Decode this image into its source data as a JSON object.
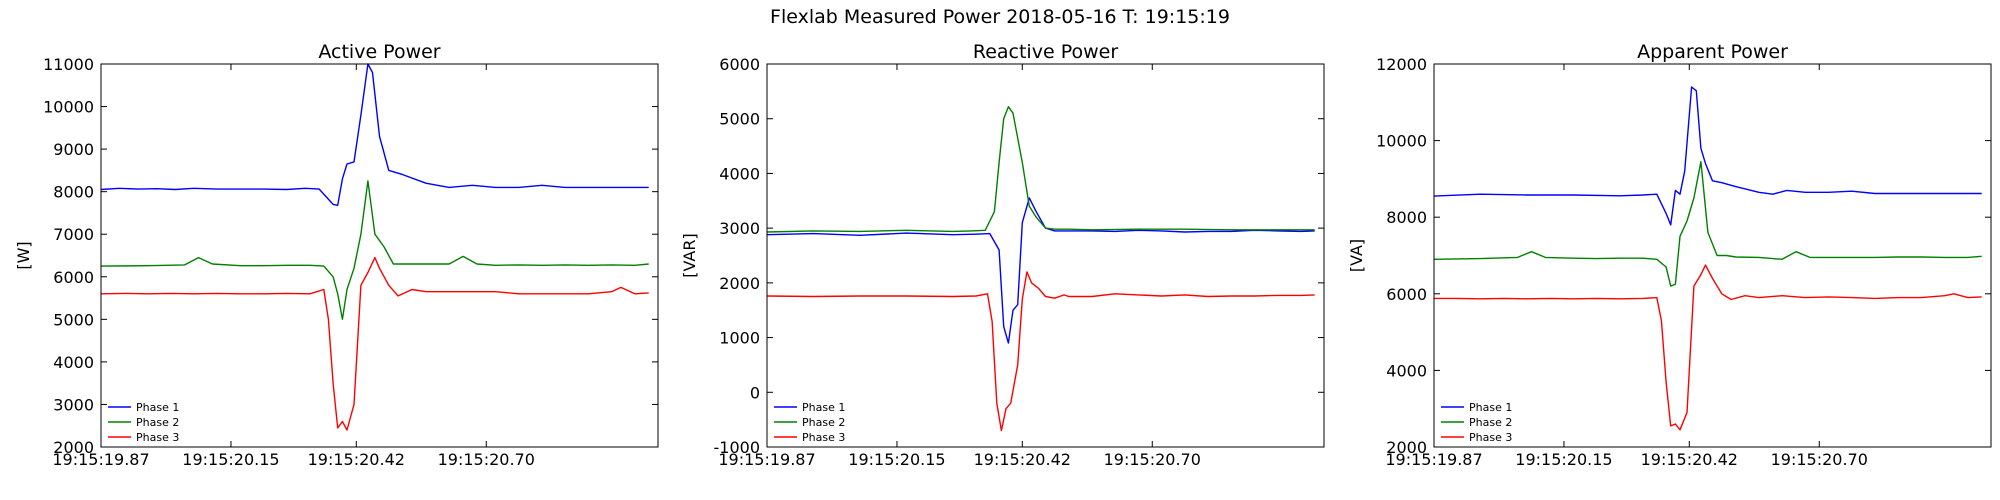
{
  "figure_title": "Flexlab Measured Power 2018-05-16 T: 19:15:19",
  "chart_data": [
    {
      "type": "line",
      "title": "Active Power",
      "ylabel": "[W]",
      "xlabel": "",
      "ylim": [
        2000,
        11000
      ],
      "yticks": [
        2000,
        3000,
        4000,
        5000,
        6000,
        7000,
        8000,
        9000,
        10000,
        11000
      ],
      "xticks": [
        0,
        0.28,
        0.55,
        0.83
      ],
      "xtick_labels": [
        "19:15:19.87",
        "19:15:20.15",
        "19:15:20.42",
        "19:15:20.70"
      ],
      "xlim": [
        0,
        1.2
      ],
      "grid": false,
      "legend": "bottom-left",
      "series": [
        {
          "name": "Phase 1",
          "color": "#0000ff",
          "x": [
            0,
            0.04,
            0.08,
            0.12,
            0.16,
            0.2,
            0.25,
            0.3,
            0.35,
            0.4,
            0.44,
            0.47,
            0.5,
            0.51,
            0.52,
            0.53,
            0.545,
            0.56,
            0.575,
            0.585,
            0.6,
            0.62,
            0.65,
            0.7,
            0.75,
            0.8,
            0.85,
            0.9,
            0.95,
            1.0,
            1.05,
            1.1,
            1.15,
            1.18
          ],
          "y": [
            8050,
            8080,
            8060,
            8070,
            8050,
            8080,
            8060,
            8060,
            8060,
            8050,
            8080,
            8060,
            7700,
            7680,
            8300,
            8650,
            8700,
            9800,
            11000,
            10800,
            9300,
            8500,
            8400,
            8200,
            8100,
            8150,
            8100,
            8100,
            8150,
            8100,
            8100,
            8100,
            8100,
            8100
          ]
        },
        {
          "name": "Phase 2",
          "color": "#008000",
          "x": [
            0,
            0.1,
            0.18,
            0.21,
            0.24,
            0.3,
            0.35,
            0.4,
            0.45,
            0.48,
            0.5,
            0.51,
            0.52,
            0.53,
            0.545,
            0.56,
            0.575,
            0.59,
            0.61,
            0.63,
            0.65,
            0.7,
            0.75,
            0.78,
            0.81,
            0.85,
            0.9,
            0.95,
            1.0,
            1.05,
            1.1,
            1.15,
            1.18
          ],
          "y": [
            6250,
            6260,
            6280,
            6450,
            6300,
            6260,
            6260,
            6270,
            6270,
            6250,
            6000,
            5600,
            5000,
            5700,
            6200,
            7000,
            8250,
            7000,
            6700,
            6300,
            6300,
            6300,
            6300,
            6480,
            6300,
            6270,
            6280,
            6270,
            6280,
            6270,
            6280,
            6270,
            6300
          ]
        },
        {
          "name": "Phase 3",
          "color": "#ff0000",
          "x": [
            0,
            0.05,
            0.1,
            0.15,
            0.2,
            0.25,
            0.3,
            0.35,
            0.4,
            0.45,
            0.48,
            0.49,
            0.5,
            0.51,
            0.52,
            0.53,
            0.545,
            0.56,
            0.575,
            0.59,
            0.6,
            0.62,
            0.64,
            0.67,
            0.7,
            0.75,
            0.8,
            0.85,
            0.9,
            0.95,
            1.0,
            1.05,
            1.1,
            1.12,
            1.15,
            1.18
          ],
          "y": [
            5600,
            5610,
            5600,
            5610,
            5600,
            5610,
            5600,
            5600,
            5610,
            5600,
            5700,
            5000,
            3500,
            2450,
            2600,
            2400,
            3000,
            5800,
            6100,
            6450,
            6200,
            5800,
            5550,
            5700,
            5650,
            5650,
            5650,
            5650,
            5600,
            5600,
            5600,
            5600,
            5650,
            5750,
            5600,
            5620
          ]
        }
      ]
    },
    {
      "type": "line",
      "title": "Reactive Power",
      "ylabel": "[VAR]",
      "xlabel": "",
      "ylim": [
        -1000,
        6000
      ],
      "yticks": [
        -1000,
        0,
        1000,
        2000,
        3000,
        4000,
        5000,
        6000
      ],
      "xticks": [
        0,
        0.28,
        0.55,
        0.83
      ],
      "xtick_labels": [
        "19:15:19.87",
        "19:15:20.15",
        "19:15:20.42",
        "19:15:20.70"
      ],
      "xlim": [
        0,
        1.2
      ],
      "grid": false,
      "legend": "bottom-left",
      "series": [
        {
          "name": "Phase 1",
          "color": "#0000ff",
          "x": [
            0,
            0.1,
            0.2,
            0.3,
            0.4,
            0.45,
            0.48,
            0.5,
            0.51,
            0.52,
            0.53,
            0.54,
            0.55,
            0.565,
            0.58,
            0.6,
            0.62,
            0.65,
            0.7,
            0.75,
            0.8,
            0.85,
            0.9,
            0.95,
            1.0,
            1.05,
            1.1,
            1.15,
            1.18
          ],
          "y": [
            2880,
            2900,
            2870,
            2910,
            2880,
            2890,
            2900,
            2600,
            1200,
            900,
            1500,
            1600,
            3100,
            3550,
            3300,
            3000,
            2950,
            2950,
            2950,
            2940,
            2960,
            2950,
            2930,
            2940,
            2940,
            2960,
            2950,
            2940,
            2950
          ]
        },
        {
          "name": "Phase 2",
          "color": "#008000",
          "x": [
            0,
            0.1,
            0.2,
            0.3,
            0.4,
            0.44,
            0.47,
            0.49,
            0.5,
            0.51,
            0.52,
            0.53,
            0.55,
            0.565,
            0.58,
            0.6,
            0.62,
            0.65,
            0.7,
            0.8,
            0.9,
            1.0,
            1.1,
            1.18
          ],
          "y": [
            2930,
            2950,
            2940,
            2960,
            2940,
            2950,
            2960,
            3300,
            4200,
            5000,
            5220,
            5100,
            4200,
            3400,
            3200,
            3000,
            2980,
            2980,
            2970,
            2980,
            2980,
            2970,
            2970,
            2970
          ]
        },
        {
          "name": "Phase 3",
          "color": "#ff0000",
          "x": [
            0,
            0.1,
            0.2,
            0.3,
            0.4,
            0.45,
            0.475,
            0.485,
            0.495,
            0.505,
            0.515,
            0.525,
            0.54,
            0.55,
            0.56,
            0.57,
            0.585,
            0.6,
            0.62,
            0.64,
            0.65,
            0.7,
            0.75,
            0.8,
            0.85,
            0.9,
            0.95,
            1.0,
            1.05,
            1.1,
            1.15,
            1.18
          ],
          "y": [
            1760,
            1750,
            1760,
            1760,
            1750,
            1760,
            1800,
            1300,
            -200,
            -700,
            -300,
            -200,
            500,
            1700,
            2200,
            2000,
            1900,
            1750,
            1720,
            1780,
            1750,
            1750,
            1800,
            1780,
            1760,
            1780,
            1750,
            1760,
            1760,
            1770,
            1770,
            1780
          ]
        }
      ]
    },
    {
      "type": "line",
      "title": "Apparent Power",
      "ylabel": "[VA]",
      "xlabel": "",
      "ylim": [
        2000,
        12000
      ],
      "yticks": [
        2000,
        4000,
        6000,
        8000,
        10000,
        12000
      ],
      "xticks": [
        0,
        0.28,
        0.55,
        0.83
      ],
      "xtick_labels": [
        "19:15:19.87",
        "19:15:20.15",
        "19:15:20.42",
        "19:15:20.70"
      ],
      "xlim": [
        0,
        1.2
      ],
      "grid": false,
      "legend": "bottom-left",
      "series": [
        {
          "name": "Phase 1",
          "color": "#0000ff",
          "x": [
            0,
            0.1,
            0.2,
            0.3,
            0.4,
            0.45,
            0.48,
            0.5,
            0.51,
            0.52,
            0.53,
            0.54,
            0.555,
            0.565,
            0.575,
            0.585,
            0.6,
            0.62,
            0.65,
            0.7,
            0.73,
            0.76,
            0.8,
            0.85,
            0.9,
            0.95,
            1.0,
            1.05,
            1.1,
            1.15,
            1.18
          ],
          "y": [
            8550,
            8600,
            8580,
            8580,
            8560,
            8580,
            8600,
            8100,
            7800,
            8700,
            8600,
            9200,
            11400,
            11300,
            9800,
            9400,
            8950,
            8900,
            8800,
            8650,
            8600,
            8700,
            8650,
            8650,
            8680,
            8620,
            8620,
            8620,
            8620,
            8620,
            8620
          ]
        },
        {
          "name": "Phase 2",
          "color": "#008000",
          "x": [
            0,
            0.1,
            0.18,
            0.21,
            0.24,
            0.3,
            0.35,
            0.4,
            0.45,
            0.48,
            0.5,
            0.51,
            0.52,
            0.53,
            0.545,
            0.56,
            0.575,
            0.59,
            0.61,
            0.63,
            0.65,
            0.7,
            0.75,
            0.78,
            0.81,
            0.85,
            0.9,
            0.95,
            1.0,
            1.05,
            1.1,
            1.15,
            1.18
          ],
          "y": [
            6900,
            6920,
            6950,
            7100,
            6950,
            6930,
            6920,
            6930,
            6930,
            6900,
            6700,
            6200,
            6250,
            7500,
            7900,
            8500,
            9450,
            7600,
            7000,
            7000,
            6960,
            6950,
            6900,
            7100,
            6950,
            6950,
            6950,
            6950,
            6960,
            6960,
            6950,
            6950,
            6980
          ]
        },
        {
          "name": "Phase 3",
          "color": "#ff0000",
          "x": [
            0,
            0.05,
            0.1,
            0.15,
            0.2,
            0.25,
            0.3,
            0.35,
            0.4,
            0.45,
            0.48,
            0.49,
            0.5,
            0.51,
            0.52,
            0.53,
            0.545,
            0.56,
            0.575,
            0.585,
            0.6,
            0.62,
            0.64,
            0.67,
            0.7,
            0.75,
            0.8,
            0.85,
            0.9,
            0.95,
            1.0,
            1.05,
            1.1,
            1.12,
            1.15,
            1.18
          ],
          "y": [
            5880,
            5880,
            5870,
            5880,
            5870,
            5880,
            5870,
            5880,
            5870,
            5880,
            5900,
            5300,
            3700,
            2550,
            2600,
            2450,
            2900,
            6200,
            6500,
            6750,
            6400,
            6000,
            5850,
            5950,
            5900,
            5950,
            5900,
            5920,
            5900,
            5880,
            5900,
            5900,
            5950,
            6000,
            5900,
            5920
          ]
        }
      ]
    }
  ]
}
